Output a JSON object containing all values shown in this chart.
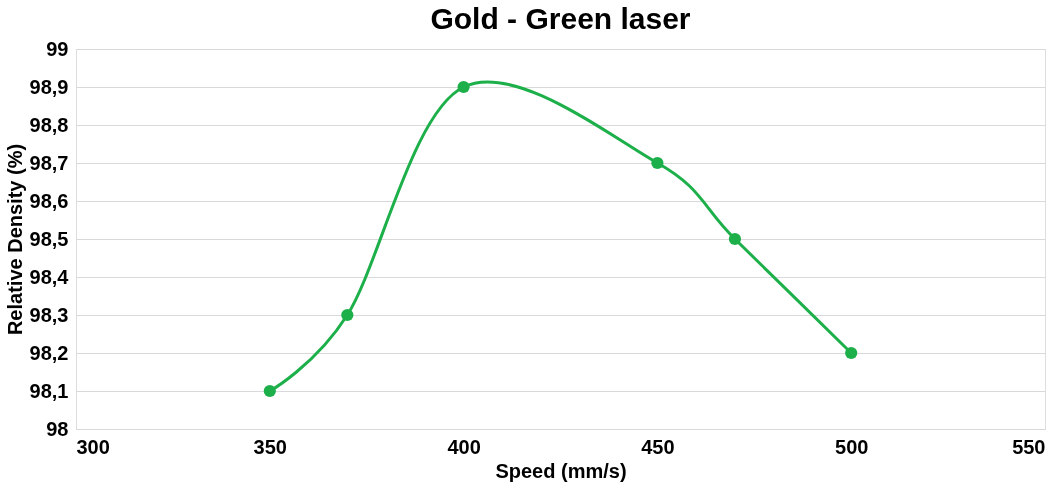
{
  "chart_data": {
    "type": "line",
    "title": "Gold - Green laser",
    "xlabel": "Speed (mm/s)",
    "ylabel": "Relative Density (%)",
    "x": [
      350,
      370,
      400,
      450,
      470,
      500
    ],
    "series": [
      {
        "color": "#1db04a",
        "values": [
          98.1,
          98.3,
          98.9,
          98.7,
          98.5,
          98.2
        ]
      }
    ],
    "xlim": [
      300,
      550
    ],
    "xticks": [
      300,
      350,
      400,
      450,
      500,
      550
    ],
    "ylim": [
      98,
      99
    ],
    "yticks": [
      98,
      {
        "value": 98.1,
        "label": "98,1"
      },
      {
        "value": 98.2,
        "label": "98,2"
      },
      {
        "value": 98.3,
        "label": "98,3"
      },
      {
        "value": 98.4,
        "label": "98,4"
      },
      {
        "value": 98.5,
        "label": "98,5"
      },
      {
        "value": 98.6,
        "label": "98,6"
      },
      {
        "value": 98.7,
        "label": "98,7"
      },
      {
        "value": 98.8,
        "label": "98,8"
      },
      {
        "value": 98.9,
        "label": "98,9"
      },
      99
    ],
    "grid": "y",
    "marker": "circle",
    "line_style": "solid"
  }
}
